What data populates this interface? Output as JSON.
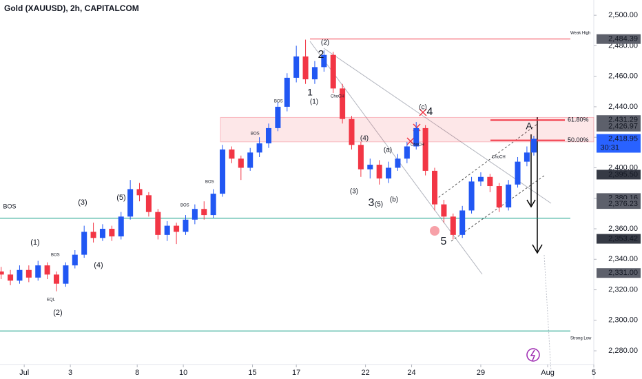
{
  "chart_data": {
    "type": "candlestick",
    "title": "Gold (XAUUSD), 2h, CAPITALCOM",
    "up_color": "#2157f3",
    "down_color": "#f23645",
    "x": [
      -1.0,
      -0.6,
      -0.2,
      0.2,
      0.6,
      1.0,
      1.4,
      1.8,
      2.2,
      2.6,
      3.0,
      3.4,
      3.8,
      4.2,
      4.6,
      5.0,
      5.4,
      5.8,
      6.2,
      6.6,
      7.0,
      7.4,
      7.8,
      8.2,
      8.6,
      9.0,
      9.4,
      9.8,
      10.2,
      10.6,
      11.0,
      11.4,
      11.8,
      12.2,
      12.6,
      13.0,
      13.4,
      13.8,
      14.2,
      14.6,
      15.0,
      15.4,
      15.8,
      16.2,
      16.6,
      17.0,
      17.4,
      17.8,
      18.2,
      18.6,
      19.0,
      19.4,
      19.8,
      20.2,
      20.6,
      21.0,
      21.4,
      21.8,
      22.1
    ],
    "open": [
      2332,
      2330,
      2326,
      2333,
      2328,
      2336,
      2330,
      2324,
      2336,
      2343,
      2358,
      2354,
      2360,
      2355,
      2368,
      2386,
      2382,
      2371,
      2356,
      2362,
      2358,
      2366,
      2373,
      2369,
      2383,
      2412,
      2406,
      2400,
      2410,
      2416,
      2426,
      2440,
      2459,
      2473,
      2458,
      2466,
      2474,
      2452,
      2432,
      2415,
      2399,
      2402,
      2393,
      2400,
      2406,
      2414,
      2426,
      2398,
      2376,
      2368,
      2356,
      2372,
      2391,
      2394,
      2388,
      2374,
      2389,
      2404,
      2410
    ],
    "high": [
      2335,
      2333,
      2336,
      2336,
      2339,
      2338,
      2332,
      2338,
      2346,
      2362,
      2364,
      2363,
      2362,
      2371,
      2392,
      2390,
      2384,
      2373,
      2365,
      2364,
      2369,
      2376,
      2378,
      2386,
      2415,
      2414,
      2408,
      2413,
      2420,
      2429,
      2443,
      2462,
      2480,
      2484,
      2470,
      2477,
      2476,
      2455,
      2434,
      2417,
      2406,
      2405,
      2404,
      2409,
      2417,
      2430,
      2428,
      2400,
      2379,
      2370,
      2375,
      2394,
      2397,
      2396,
      2390,
      2392,
      2407,
      2414,
      2421
    ],
    "low": [
      2327,
      2323,
      2324,
      2325,
      2326,
      2327,
      2319,
      2322,
      2334,
      2341,
      2351,
      2352,
      2352,
      2353,
      2366,
      2378,
      2368,
      2353,
      2352,
      2350,
      2356,
      2363,
      2366,
      2367,
      2381,
      2403,
      2392,
      2398,
      2407,
      2413,
      2424,
      2437,
      2456,
      2455,
      2455,
      2463,
      2449,
      2429,
      2412,
      2394,
      2393,
      2389,
      2390,
      2398,
      2403,
      2412,
      2395,
      2372,
      2364,
      2353,
      2354,
      2370,
      2388,
      2384,
      2371,
      2372,
      2387,
      2401,
      2408
    ],
    "close": [
      2330,
      2326,
      2333,
      2328,
      2336,
      2330,
      2324,
      2336,
      2343,
      2358,
      2354,
      2360,
      2355,
      2368,
      2386,
      2382,
      2371,
      2356,
      2362,
      2358,
      2366,
      2373,
      2369,
      2383,
      2412,
      2406,
      2400,
      2410,
      2416,
      2426,
      2440,
      2459,
      2473,
      2458,
      2466,
      2474,
      2452,
      2432,
      2415,
      2399,
      2402,
      2393,
      2400,
      2406,
      2414,
      2426,
      2398,
      2376,
      2368,
      2356,
      2372,
      2391,
      2394,
      2388,
      2374,
      2389,
      2404,
      2410,
      2419
    ],
    "xlim": [
      -1.05,
      24.7
    ],
    "ylim": [
      2271,
      2510
    ],
    "xticks": [
      {
        "value": 0,
        "label": "Jul"
      },
      {
        "value": 2,
        "label": "3"
      },
      {
        "value": 4.9,
        "label": "8"
      },
      {
        "value": 6.9,
        "label": "10"
      },
      {
        "value": 9.9,
        "label": "15"
      },
      {
        "value": 11.8,
        "label": "17"
      },
      {
        "value": 14.8,
        "label": "22"
      },
      {
        "value": 16.8,
        "label": "24"
      },
      {
        "value": 19.8,
        "label": "29"
      },
      {
        "value": 22.7,
        "label": "Aug"
      },
      {
        "value": 24.7,
        "label": "5"
      }
    ],
    "yticks": [
      {
        "value": 2280,
        "label": "2,280.00"
      },
      {
        "value": 2300,
        "label": "2,300.00"
      },
      {
        "value": 2320,
        "label": "2,320.00"
      },
      {
        "value": 2340,
        "label": "2,340.00"
      },
      {
        "value": 2360,
        "label": "2,360.00"
      },
      {
        "value": 2380,
        "label": "2,380.00"
      },
      {
        "value": 2400,
        "label": "2,400.00"
      },
      {
        "value": 2420,
        "label": "2,420.00"
      },
      {
        "value": 2440,
        "label": "2,440.00"
      },
      {
        "value": 2460,
        "label": "2,460.00"
      },
      {
        "value": 2480,
        "label": "2,480.00"
      },
      {
        "value": 2500,
        "label": "2,500.00"
      }
    ],
    "price_tags": [
      {
        "value": 2484.39,
        "label": "2,484.39",
        "color": "#5d606b"
      },
      {
        "value": 2431.29,
        "label": "2,431.29",
        "color": "#5d606b"
      },
      {
        "value": 2426.97,
        "label": "2,426.97",
        "color": "#5d606b"
      },
      {
        "value": 2418.95,
        "label": "2,418.95",
        "color": "#2962ff"
      },
      {
        "value": 2395.5,
        "label": "2,395.50",
        "color": "#363a45"
      },
      {
        "value": 2380.16,
        "label": "2,380.16",
        "color": "#5d606b"
      },
      {
        "value": 2376.23,
        "label": "2,376.23",
        "color": "#5d606b"
      },
      {
        "value": 2353.42,
        "label": "2,353.42",
        "color": "#363a45"
      },
      {
        "value": 2331.0,
        "label": "2,331.00",
        "color": "#5d606b"
      }
    ],
    "countdown": "30:31",
    "zone": [
      2417,
      2433
    ],
    "fib_levels": [
      {
        "label": "61.80%",
        "value": 2431.29
      },
      {
        "label": "50.00%",
        "value": 2418
      }
    ],
    "levels": [
      {
        "value": 2367,
        "color": "#089981"
      },
      {
        "value": 2293,
        "color": "#089981"
      }
    ],
    "annotations": [
      "BOS",
      "(1)",
      "(2)",
      "(3)",
      "(4)",
      "(5)",
      "1",
      "2",
      "3",
      "4",
      "5",
      "(1)",
      "(2)",
      "(3)",
      "(4)",
      "(5)",
      "(a)",
      "(b)",
      "(c)",
      "A",
      "Weak High",
      "Strong Low",
      "EQL",
      "ChoCH",
      "BOS",
      "BOS",
      "BOS",
      "BOS",
      "BOS",
      "ChoCH",
      "ChoCH"
    ]
  }
}
